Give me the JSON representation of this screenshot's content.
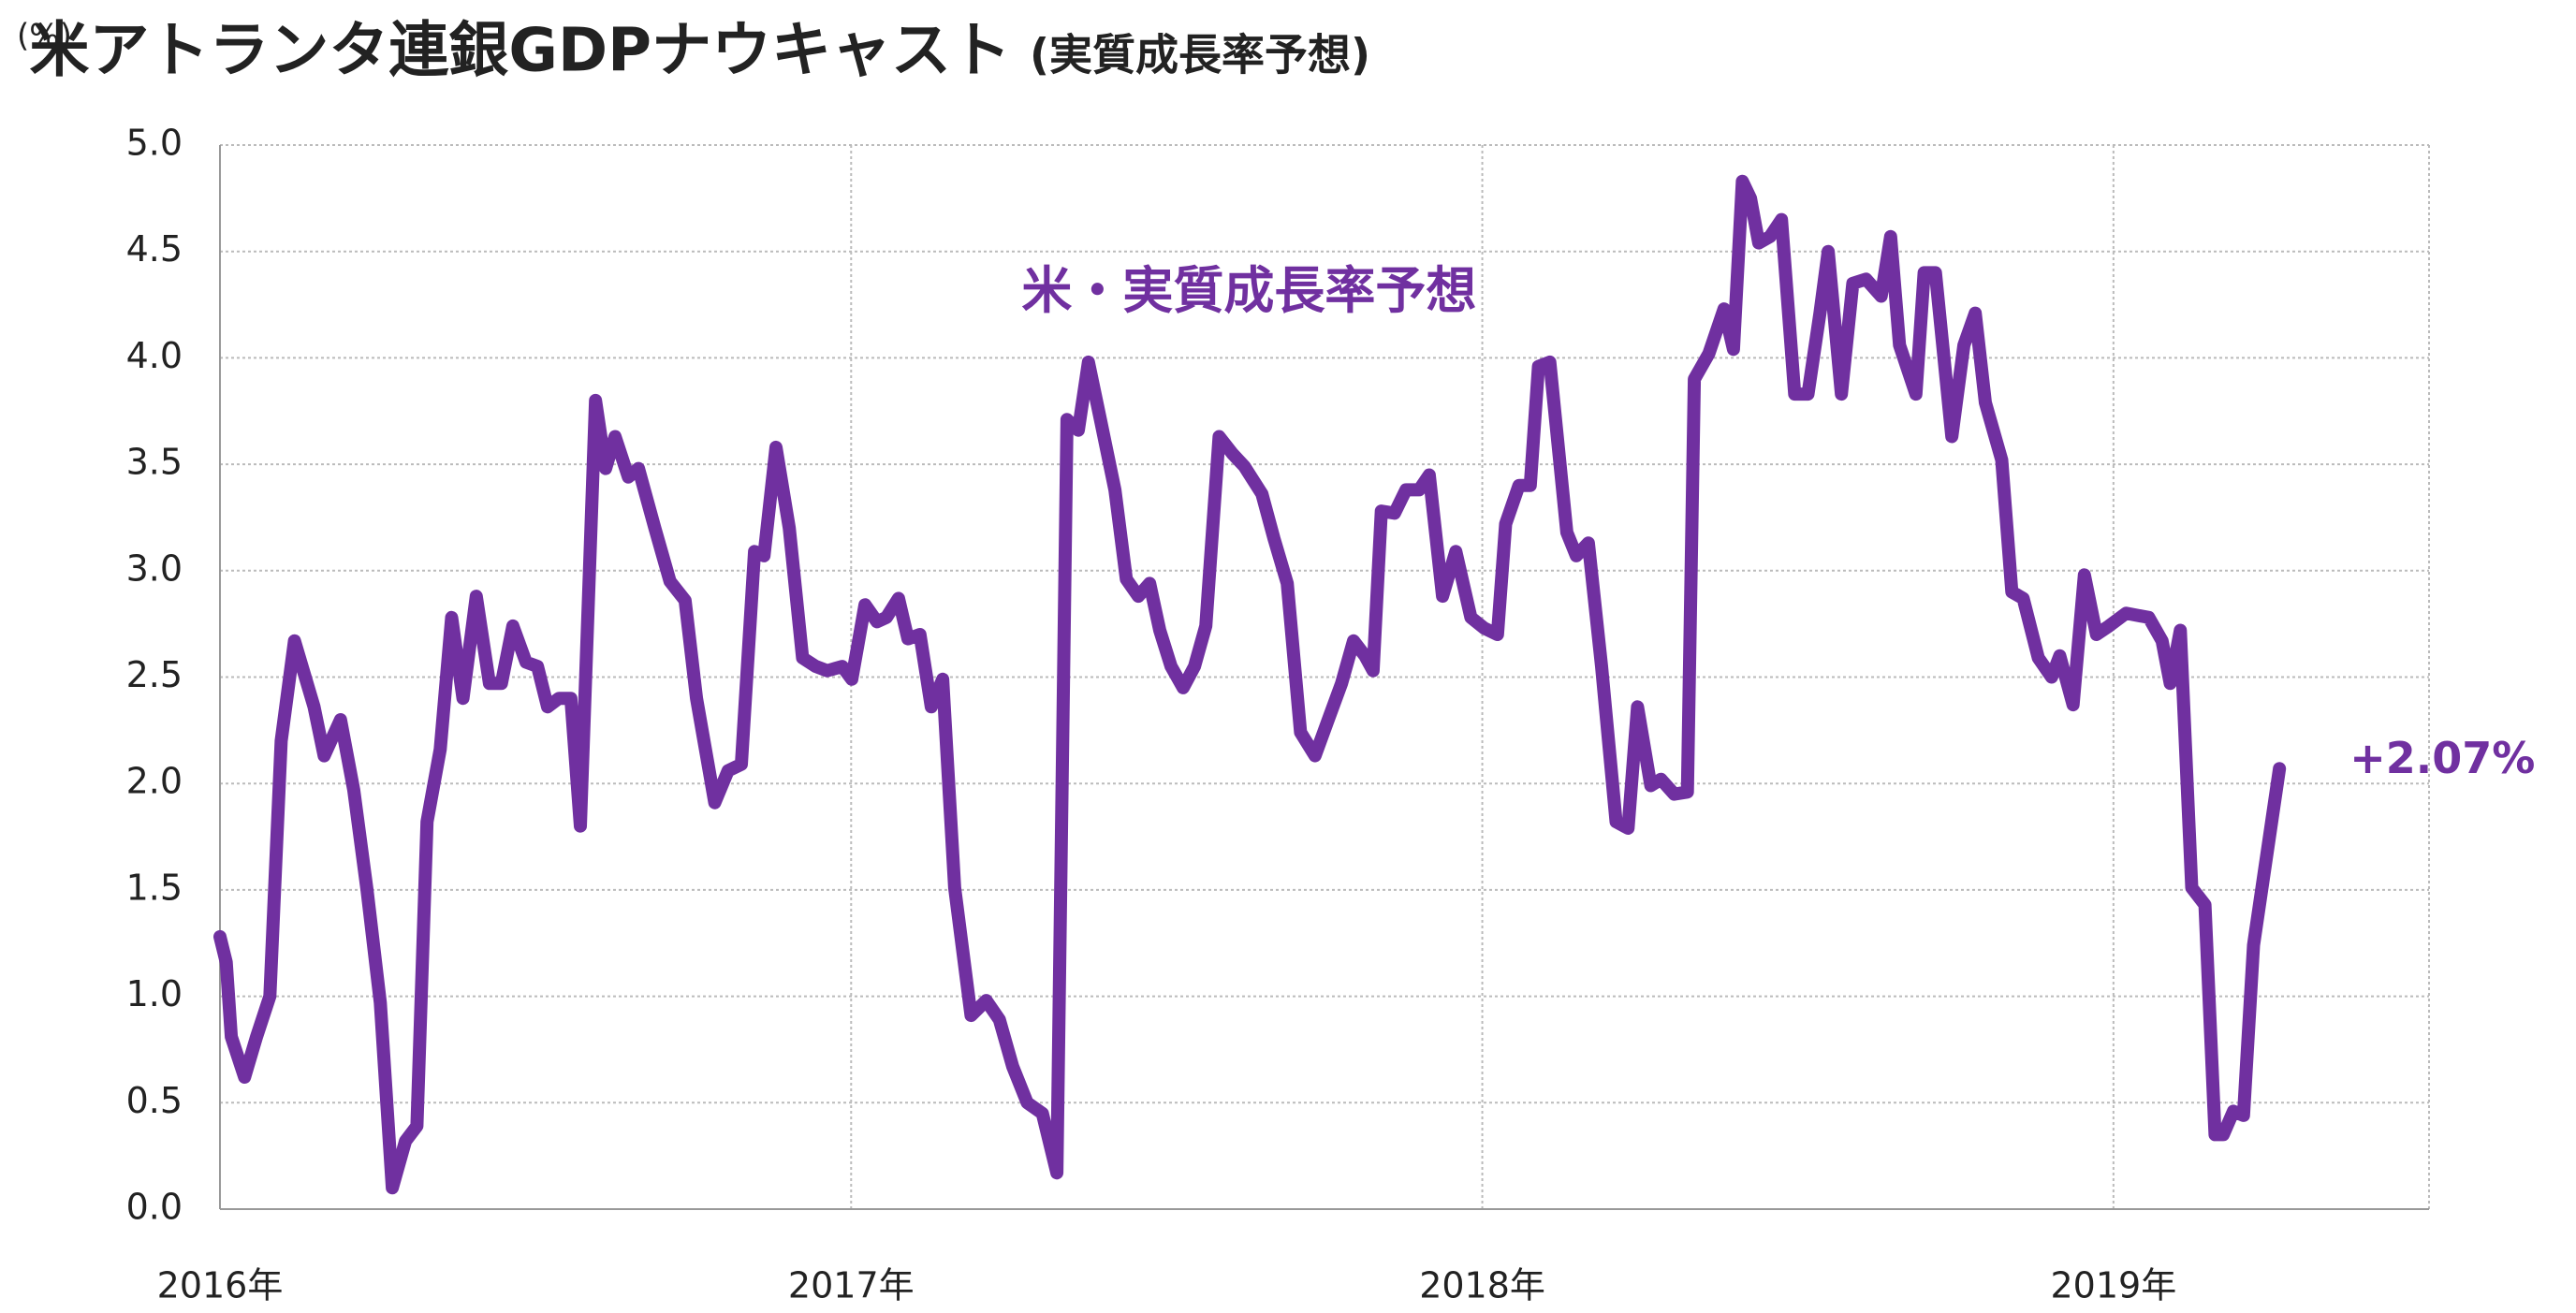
{
  "chart_data": {
    "type": "line",
    "title": "米アトランタ連銀GDPナウキャスト",
    "subtitle": "(実質成長率予想)",
    "y_label": "(%)",
    "xlim": [
      2016,
      2019.5
    ],
    "xticks": [
      {
        "value": 2016,
        "label": "2016年"
      },
      {
        "value": 2017,
        "label": "2017年"
      },
      {
        "value": 2018,
        "label": "2018年"
      },
      {
        "value": 2019,
        "label": "2019年"
      }
    ],
    "ylim": [
      0,
      5
    ],
    "yticks": [
      {
        "value": 0,
        "label": "0.0"
      },
      0.5,
      {
        "value": 1,
        "label": "1.0"
      },
      1.5,
      {
        "value": 2,
        "label": "2.0"
      },
      2.5,
      {
        "value": 3,
        "label": "3.0"
      },
      3.5,
      {
        "value": 4,
        "label": "4.0"
      },
      4.5,
      {
        "value": 5,
        "label": "5.0"
      }
    ],
    "grid": true,
    "x": [
      2016.0,
      2016.01,
      2016.018,
      2016.039,
      2016.058,
      2016.079,
      2016.097,
      2016.118,
      2016.149,
      2016.165,
      2016.191,
      2016.212,
      2016.233,
      2016.254,
      2016.273,
      2016.294,
      2016.312,
      2016.328,
      2016.349,
      2016.367,
      2016.385,
      2016.406,
      2016.427,
      2016.446,
      2016.464,
      2016.485,
      2016.503,
      2016.519,
      2016.537,
      2016.556,
      2016.571,
      2016.595,
      2016.611,
      2016.626,
      2016.647,
      2016.663,
      2016.689,
      2016.713,
      2016.737,
      2016.755,
      2016.784,
      2016.805,
      2016.826,
      2016.847,
      2016.862,
      2016.881,
      2016.902,
      2016.923,
      2016.944,
      2016.962,
      2016.986,
      2017.001,
      2017.022,
      2017.041,
      2017.056,
      2017.075,
      2017.09,
      2017.109,
      2017.127,
      2017.145,
      2017.164,
      2017.19,
      2017.214,
      2017.235,
      2017.256,
      2017.279,
      2017.303,
      2017.326,
      2017.342,
      2017.36,
      2017.376,
      2017.395,
      2017.418,
      2017.436,
      2017.455,
      2017.473,
      2017.489,
      2017.507,
      2017.526,
      2017.544,
      2017.562,
      2017.583,
      2017.604,
      2017.623,
      2017.651,
      2017.67,
      2017.691,
      2017.712,
      2017.735,
      2017.756,
      2017.777,
      2017.796,
      2017.814,
      2017.827,
      2017.84,
      2017.861,
      2017.879,
      2017.9,
      2017.916,
      2017.937,
      2017.958,
      2017.982,
      2018.003,
      2018.024,
      2018.037,
      2018.058,
      2018.076,
      2018.089,
      2018.107,
      2018.134,
      2018.149,
      2018.168,
      2018.189,
      2018.212,
      2018.231,
      2018.246,
      2018.267,
      2018.283,
      2018.304,
      2018.325,
      2018.336,
      2018.359,
      2018.383,
      2018.398,
      2018.412,
      2018.425,
      2018.438,
      2018.456,
      2018.474,
      2018.495,
      2018.516,
      2018.535,
      2018.548,
      2018.569,
      2018.587,
      2018.608,
      2018.632,
      2018.647,
      2018.661,
      2018.687,
      2018.7,
      2018.718,
      2018.744,
      2018.763,
      2018.781,
      2018.797,
      2018.823,
      2018.839,
      2018.857,
      2018.881,
      2018.902,
      2018.915,
      2018.936,
      2018.954,
      2018.973,
      2018.993,
      2019.02,
      2019.056,
      2019.077,
      2019.09,
      2019.106,
      2019.124,
      2019.145,
      2019.161,
      2019.174,
      2019.19,
      2019.206,
      2019.222,
      2019.263
    ],
    "series": [
      {
        "name": "米・実質成長率予想",
        "color": "#7030a0",
        "values": [
          1.28,
          1.16,
          0.81,
          0.62,
          0.81,
          1.0,
          2.2,
          2.67,
          2.36,
          2.13,
          2.3,
          1.97,
          1.5,
          0.97,
          0.1,
          0.32,
          0.39,
          1.82,
          2.16,
          2.78,
          2.4,
          2.88,
          2.47,
          2.47,
          2.74,
          2.57,
          2.55,
          2.36,
          2.4,
          2.4,
          1.8,
          3.8,
          3.48,
          3.63,
          3.44,
          3.48,
          3.2,
          2.95,
          2.86,
          2.4,
          1.91,
          2.06,
          2.09,
          3.09,
          3.07,
          3.58,
          3.2,
          2.59,
          2.55,
          2.53,
          2.55,
          2.49,
          2.84,
          2.76,
          2.78,
          2.87,
          2.68,
          2.7,
          2.36,
          2.49,
          1.51,
          0.91,
          0.98,
          0.89,
          0.67,
          0.5,
          0.45,
          0.17,
          3.71,
          3.66,
          3.98,
          3.71,
          3.38,
          2.96,
          2.88,
          2.94,
          2.72,
          2.55,
          2.45,
          2.55,
          2.74,
          3.63,
          3.55,
          3.49,
          3.36,
          3.15,
          2.94,
          2.24,
          2.13,
          2.3,
          2.47,
          2.67,
          2.6,
          2.53,
          3.28,
          3.27,
          3.38,
          3.38,
          3.45,
          2.88,
          3.09,
          2.78,
          2.73,
          2.7,
          3.22,
          3.4,
          3.4,
          3.96,
          3.98,
          3.18,
          3.07,
          3.13,
          2.55,
          1.82,
          1.79,
          2.36,
          1.99,
          2.02,
          1.95,
          1.96,
          3.9,
          4.02,
          4.23,
          4.04,
          4.83,
          4.75,
          4.54,
          4.57,
          4.65,
          3.83,
          3.83,
          4.21,
          4.5,
          3.83,
          4.35,
          4.37,
          4.29,
          4.57,
          4.06,
          3.83,
          4.4,
          4.4,
          3.63,
          4.06,
          4.21,
          3.79,
          3.52,
          2.9,
          2.87,
          2.59,
          2.5,
          2.6,
          2.37,
          2.98,
          2.7,
          2.74,
          2.8,
          2.78,
          2.67,
          2.47,
          2.72,
          1.51,
          1.43,
          0.35,
          0.35,
          0.46,
          0.44,
          1.24,
          2.07
        ]
      }
    ],
    "annotations": [
      {
        "text": "+2.07%"
      }
    ]
  }
}
